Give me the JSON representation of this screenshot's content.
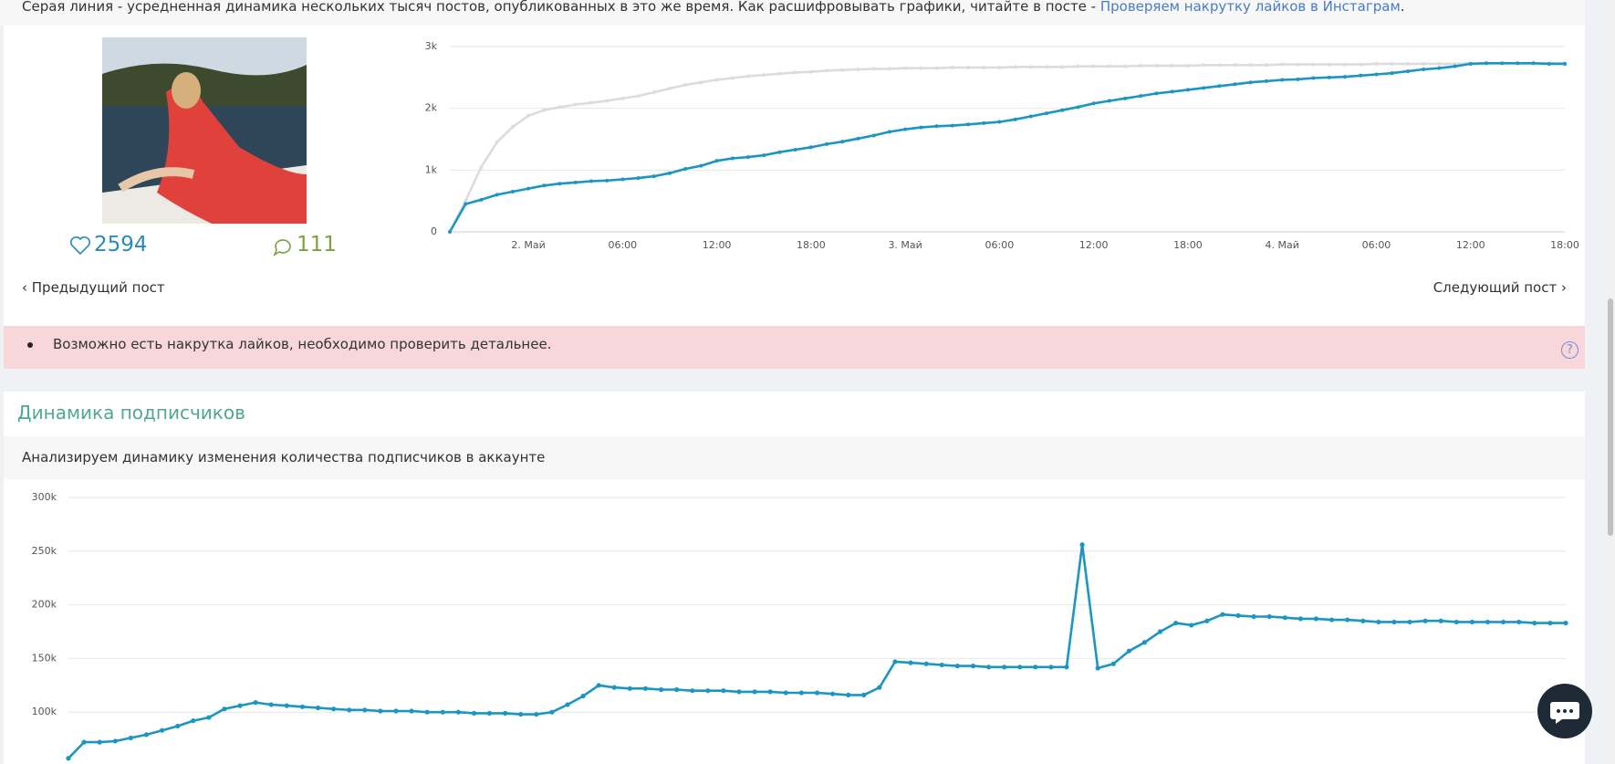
{
  "note": {
    "text": "Серая линия - усредненная динамика нескольких тысяч постов, опубликованных в это же время. Как расшифровывать графики, читайте в посте - ",
    "link": "Проверяем накрутку лайков в Инстаграм",
    "end": "."
  },
  "post": {
    "likes": 2594,
    "comments": 111,
    "prev": "Предыдущий пост",
    "next": "Следующий пост"
  },
  "alert": "Возможно есть накрутка лайков, необходимо проверить детальнее.",
  "section": {
    "title": "Динамика подписчиков",
    "subtitle": "Анализируем динамику изменения количества подписчиков в аккаунте"
  },
  "chart_data": [
    {
      "type": "line",
      "categories": [
        null,
        null,
        null,
        null,
        null,
        "2. Май",
        null,
        null,
        null,
        null,
        null,
        "06:00",
        null,
        null,
        null,
        null,
        null,
        "12:00",
        null,
        null,
        null,
        null,
        null,
        "18:00",
        null,
        null,
        null,
        null,
        null,
        "3. Май",
        null,
        null,
        null,
        null,
        null,
        "06:00",
        null,
        null,
        null,
        null,
        null,
        "12:00",
        null,
        null,
        null,
        null,
        null,
        "18:00",
        null,
        null,
        null,
        null,
        null,
        "4. Май",
        null,
        null,
        null,
        null,
        null,
        "06:00",
        null,
        null,
        null,
        null,
        null,
        "12:00",
        null,
        null,
        null,
        null,
        null,
        "18:00"
      ],
      "series": [
        {
          "color": "#dcdcdc",
          "values": [
            0,
            500,
            1050,
            1450,
            1700,
            1880,
            1970,
            2020,
            2060,
            2090,
            2120,
            2160,
            2200,
            2260,
            2320,
            2380,
            2420,
            2460,
            2490,
            2520,
            2540,
            2560,
            2580,
            2590,
            2610,
            2620,
            2630,
            2640,
            2640,
            2650,
            2650,
            2650,
            2660,
            2660,
            2660,
            2660,
            2670,
            2670,
            2670,
            2670,
            2680,
            2680,
            2680,
            2680,
            2690,
            2690,
            2690,
            2690,
            2700,
            2700,
            2700,
            2700,
            2700,
            2710,
            2710,
            2710,
            2710,
            2710,
            2710,
            2720,
            2720,
            2720,
            2720,
            2720,
            2720,
            2730,
            2730,
            2730,
            2730,
            2730,
            2730,
            2730
          ]
        },
        {
          "color": "#1b96c2",
          "values": [
            0,
            450,
            520,
            600,
            650,
            700,
            750,
            780,
            800,
            820,
            830,
            850,
            870,
            900,
            950,
            1020,
            1070,
            1150,
            1190,
            1210,
            1240,
            1290,
            1330,
            1370,
            1420,
            1460,
            1510,
            1560,
            1620,
            1660,
            1690,
            1710,
            1720,
            1740,
            1760,
            1780,
            1820,
            1870,
            1920,
            1970,
            2020,
            2080,
            2120,
            2160,
            2200,
            2240,
            2270,
            2300,
            2330,
            2360,
            2390,
            2420,
            2440,
            2460,
            2470,
            2490,
            2500,
            2510,
            2530,
            2550,
            2570,
            2600,
            2630,
            2650,
            2680,
            2720,
            2730,
            2730,
            2730,
            2730,
            2720,
            2720
          ]
        }
      ],
      "ylim": [
        0,
        3000
      ],
      "yticks": [
        0,
        {
          "value": 1000,
          "label": "1k"
        },
        {
          "value": 2000,
          "label": "2k"
        },
        {
          "value": 3000,
          "label": "3k"
        }
      ],
      "grid": true
    },
    {
      "type": "line",
      "series": [
        {
          "color": "#1b96c2",
          "values": [
            57000,
            72000,
            72000,
            73000,
            76000,
            79000,
            83000,
            87000,
            92000,
            95000,
            103000,
            106000,
            109000,
            107000,
            106000,
            105000,
            104000,
            103000,
            102000,
            102000,
            101000,
            101000,
            101000,
            100000,
            100000,
            100000,
            99000,
            99000,
            99000,
            98000,
            98000,
            100000,
            107000,
            115000,
            125000,
            123000,
            122000,
            122000,
            121000,
            121000,
            120000,
            120000,
            120000,
            119000,
            119000,
            119000,
            118000,
            118000,
            118000,
            117000,
            116000,
            116000,
            123000,
            147000,
            146000,
            145000,
            144000,
            143000,
            143000,
            142000,
            142000,
            142000,
            142000,
            142000,
            142000,
            256000,
            141000,
            145000,
            157000,
            165000,
            175000,
            183000,
            181000,
            185000,
            191000,
            190000,
            189000,
            189000,
            188000,
            187000,
            187000,
            186000,
            186000,
            185000,
            184000,
            184000,
            184000,
            185000,
            185000,
            184000,
            184000,
            184000,
            184000,
            184000,
            183000,
            183000,
            183000
          ]
        }
      ],
      "ylim": [
        50000,
        300000
      ],
      "yticks": [
        {
          "value": 100000,
          "label": "100k"
        },
        {
          "value": 150000,
          "label": "150k"
        },
        {
          "value": 200000,
          "label": "200k"
        },
        {
          "value": 250000,
          "label": "250k"
        },
        {
          "value": 300000,
          "label": "300k"
        }
      ],
      "grid": true
    }
  ]
}
